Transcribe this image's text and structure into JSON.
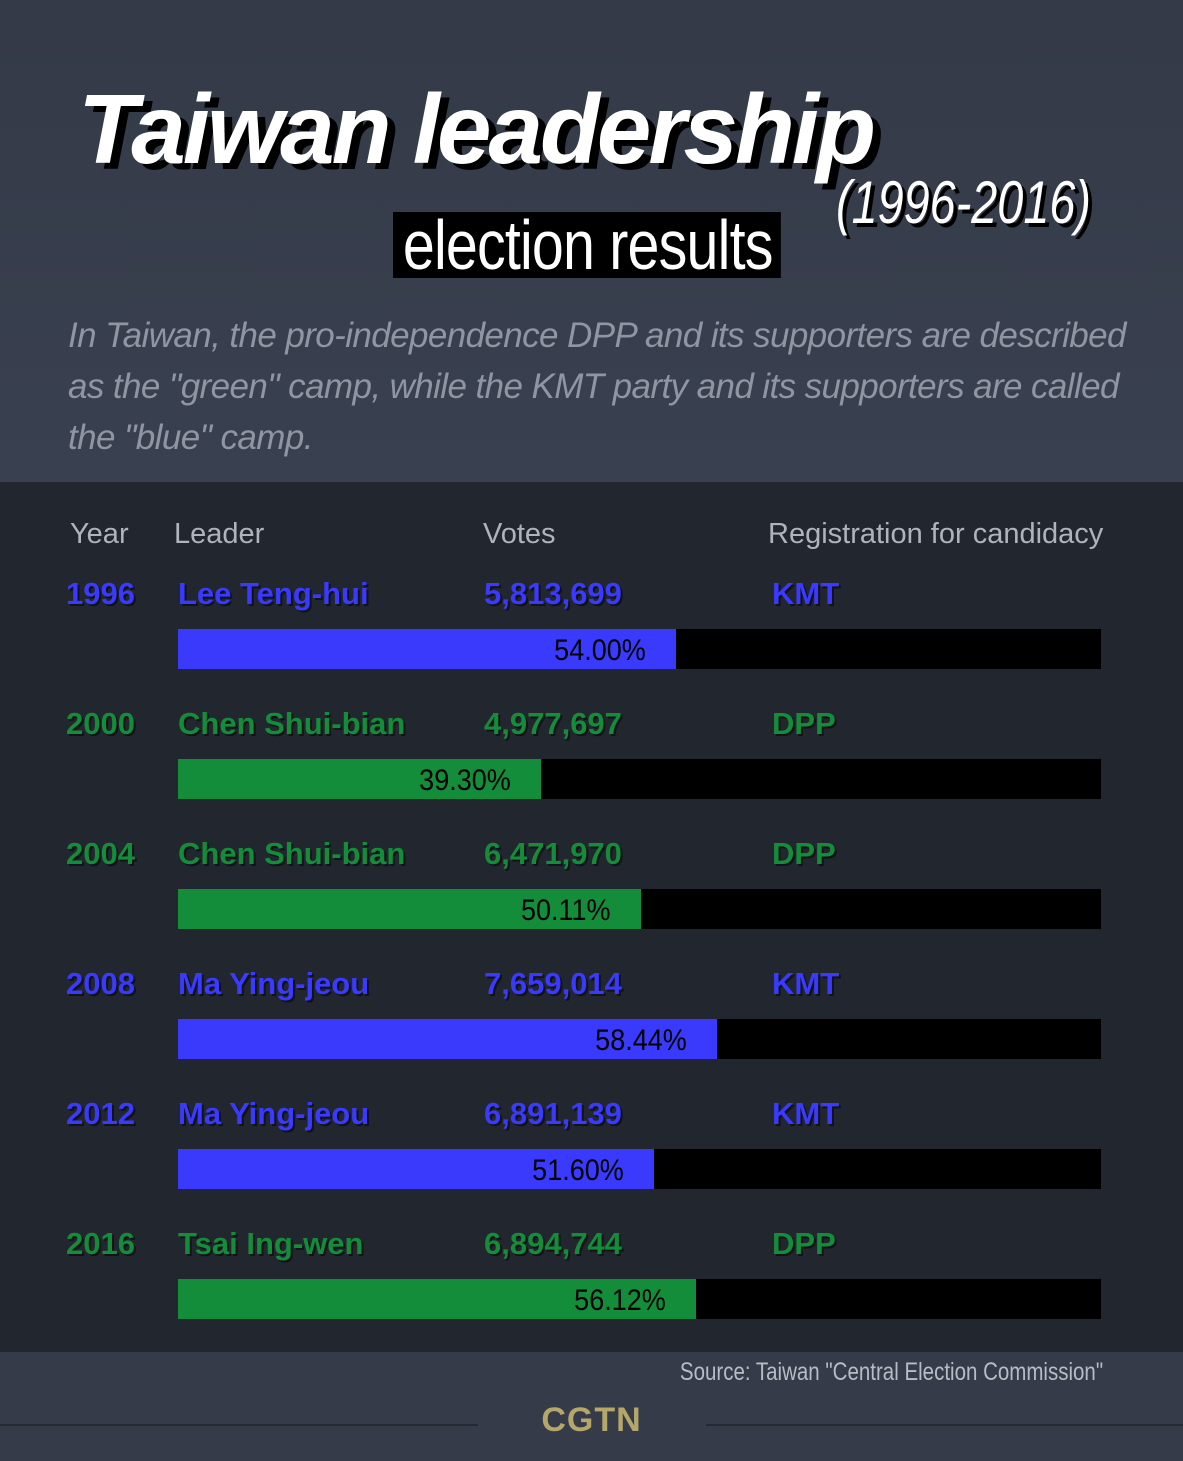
{
  "title": "Taiwan leadership",
  "subtitle": "election results",
  "period": "(1996-2016)",
  "intro": "In Taiwan, the pro-independence DPP and its supporters are described as the \"green\" camp, while the KMT party and its supporters are called the \"blue\" camp.",
  "columns": {
    "year": "Year",
    "leader": "Leader",
    "votes": "Votes",
    "registration": "Registration for candidacy"
  },
  "colors": {
    "KMT": "#3a3afc",
    "DPP": "#138d3a",
    "bar_track": "#000000"
  },
  "chart_data": {
    "type": "bar",
    "orientation": "horizontal",
    "value_unit": "%",
    "xlim": [
      0,
      100
    ],
    "rows": [
      {
        "year": "1996",
        "leader": "Lee Teng-hui",
        "votes": "5,813,699",
        "party": "KMT",
        "percent": 54.0,
        "percent_label": "54.00%"
      },
      {
        "year": "2000",
        "leader": "Chen Shui-bian",
        "votes": "4,977,697",
        "party": "DPP",
        "percent": 39.3,
        "percent_label": "39.30%"
      },
      {
        "year": "2004",
        "leader": "Chen Shui-bian",
        "votes": "6,471,970",
        "party": "DPP",
        "percent": 50.11,
        "percent_label": "50.11%"
      },
      {
        "year": "2008",
        "leader": "Ma Ying-jeou",
        "votes": "7,659,014",
        "party": "KMT",
        "percent": 58.44,
        "percent_label": "58.44%"
      },
      {
        "year": "2012",
        "leader": "Ma Ying-jeou",
        "votes": "6,891,139",
        "party": "KMT",
        "percent": 51.6,
        "percent_label": "51.60%"
      },
      {
        "year": "2016",
        "leader": "Tsai Ing-wen",
        "votes": "6,894,744",
        "party": "DPP",
        "percent": 56.12,
        "percent_label": "56.12%"
      }
    ]
  },
  "source": "Source: Taiwan \"Central Election Commission\"",
  "logo": "CGTN"
}
